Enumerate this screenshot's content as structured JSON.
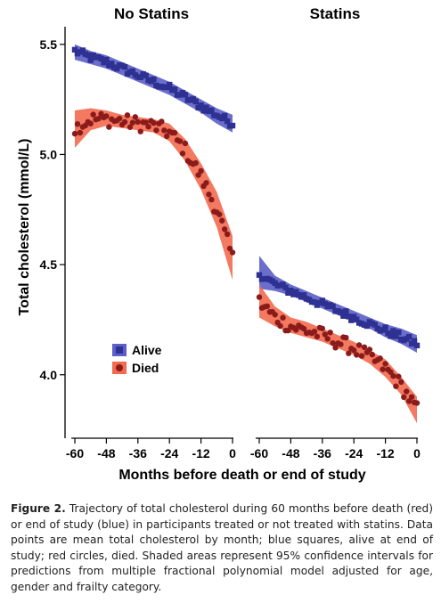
{
  "chart_data": [
    {
      "type": "scatter",
      "title": "No Statins",
      "xlabel": "Months before death or end of study",
      "ylabel": "Total cholesterol (mmol/L)",
      "xlim": [
        -62,
        1
      ],
      "ylim": [
        3.72,
        5.58
      ],
      "x_ticks": [
        -60,
        -48,
        -36,
        -24,
        -12,
        0
      ],
      "x_tick_labels": [
        "-60",
        "-48",
        "-36",
        "-24",
        "-12",
        "0"
      ],
      "y_ticks": [
        4.0,
        4.5,
        5.0,
        5.5
      ],
      "y_tick_labels": [
        "4.0",
        "4.5",
        "5.0",
        "5.5"
      ],
      "legend": {
        "position": "bottom-left",
        "entries": [
          "Alive",
          "Died"
        ]
      },
      "series": [
        {
          "name": "Alive",
          "color": "#2e3192",
          "band_color": "#5b5fc7",
          "marker": "square",
          "x": [
            -60,
            -54,
            -48,
            -42,
            -36,
            -30,
            -24,
            -18,
            -12,
            -6,
            0
          ],
          "y": [
            5.47,
            5.44,
            5.42,
            5.39,
            5.36,
            5.33,
            5.3,
            5.26,
            5.22,
            5.18,
            5.14
          ],
          "band_lower": [
            5.43,
            5.41,
            5.39,
            5.36,
            5.33,
            5.3,
            5.27,
            5.23,
            5.19,
            5.14,
            5.1
          ],
          "band_upper": [
            5.5,
            5.47,
            5.45,
            5.42,
            5.39,
            5.36,
            5.33,
            5.29,
            5.25,
            5.21,
            5.18
          ]
        },
        {
          "name": "Died",
          "color": "#8b1a1a",
          "band_color": "#f26a4f",
          "marker": "circle",
          "x": [
            -60,
            -54,
            -48,
            -42,
            -36,
            -30,
            -24,
            -18,
            -12,
            -6,
            0
          ],
          "y": [
            5.12,
            5.16,
            5.16,
            5.15,
            5.14,
            5.13,
            5.1,
            5.02,
            4.9,
            4.75,
            4.53
          ],
          "band_lower": [
            5.03,
            5.11,
            5.13,
            5.12,
            5.11,
            5.1,
            5.06,
            4.97,
            4.84,
            4.67,
            4.43
          ],
          "band_upper": [
            5.2,
            5.21,
            5.2,
            5.18,
            5.17,
            5.16,
            5.14,
            5.07,
            4.96,
            4.83,
            4.63
          ]
        }
      ]
    },
    {
      "type": "scatter",
      "title": "Statins",
      "xlabel": "Months before death or end of study",
      "ylabel": "Total cholesterol (mmol/L)",
      "xlim": [
        -62,
        1
      ],
      "ylim": [
        3.72,
        5.58
      ],
      "x_ticks": [
        -60,
        -48,
        -36,
        -24,
        -12,
        0
      ],
      "x_tick_labels": [
        "-60",
        "-48",
        "-36",
        "-24",
        "-12",
        "0"
      ],
      "series": [
        {
          "name": "Alive",
          "color": "#2e3192",
          "band_color": "#5b5fc7",
          "marker": "square",
          "x": [
            -60,
            -54,
            -48,
            -42,
            -36,
            -30,
            -24,
            -18,
            -12,
            -6,
            0
          ],
          "y": [
            4.46,
            4.41,
            4.38,
            4.35,
            4.32,
            4.29,
            4.26,
            4.23,
            4.2,
            4.17,
            4.14
          ],
          "band_lower": [
            4.39,
            4.38,
            4.36,
            4.33,
            4.3,
            4.27,
            4.24,
            4.21,
            4.17,
            4.14,
            4.1
          ],
          "band_upper": [
            4.54,
            4.45,
            4.41,
            4.38,
            4.35,
            4.32,
            4.29,
            4.26,
            4.23,
            4.21,
            4.18
          ]
        },
        {
          "name": "Died",
          "color": "#8b1a1a",
          "band_color": "#f26a4f",
          "marker": "circle",
          "x": [
            -60,
            -54,
            -48,
            -42,
            -36,
            -30,
            -24,
            -18,
            -12,
            -6,
            0
          ],
          "y": [
            4.33,
            4.26,
            4.22,
            4.2,
            4.18,
            4.15,
            4.12,
            4.08,
            4.03,
            3.95,
            3.84
          ],
          "band_lower": [
            4.26,
            4.22,
            4.19,
            4.17,
            4.15,
            4.12,
            4.09,
            4.05,
            3.99,
            3.91,
            3.78
          ],
          "band_upper": [
            4.41,
            4.31,
            4.26,
            4.24,
            4.21,
            4.18,
            4.15,
            4.11,
            4.07,
            3.99,
            3.9
          ]
        }
      ]
    }
  ],
  "caption": {
    "label": "Figure 2.",
    "text": "Trajectory of total cholesterol during 60 months before death (red) or end of study (blue) in participants treated or not treated with statins. Data points are mean total cholesterol by month; blue squares, alive at end of study; red circles, died. Shaded areas represent 95% confidence intervals for predictions from multiple fractional polynomial model adjusted for age, gender and frailty category."
  }
}
